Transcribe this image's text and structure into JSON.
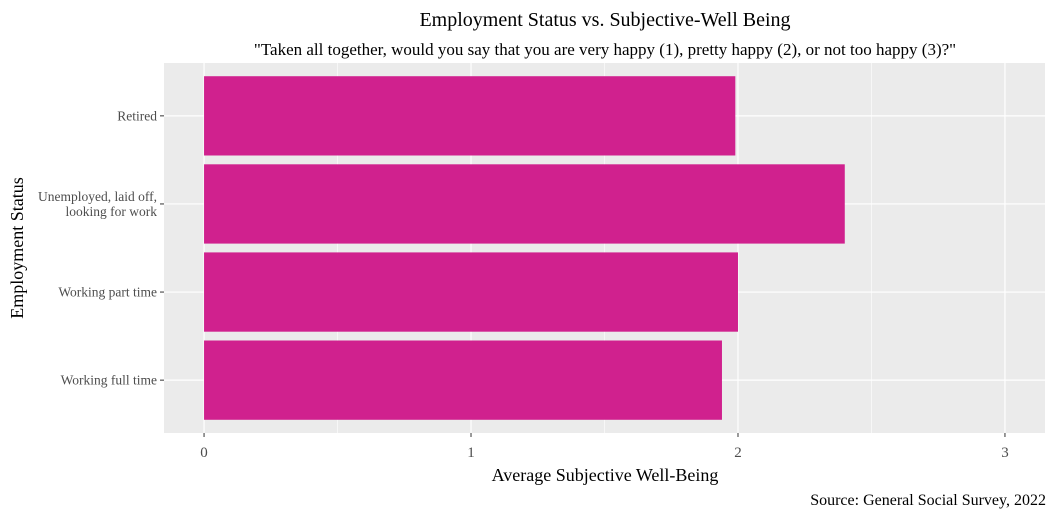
{
  "chart_data": {
    "type": "bar",
    "orientation": "horizontal",
    "title": "Employment Status vs. Subjective-Well Being",
    "subtitle": "\"Taken all together, would you say that you are very happy (1), pretty happy (2), or not too happy (3)?\"",
    "xlabel": "Average Subjective Well-Being",
    "ylabel": "Employment Status",
    "caption": "Source: General Social Survey, 2022",
    "categories": [
      "Retired",
      "Unemployed, laid off,\nlooking for work",
      "Working part time",
      "Working full time"
    ],
    "values": [
      1.99,
      2.4,
      2.0,
      1.94
    ],
    "xlim": [
      -0.15,
      3.15
    ],
    "xticks": [
      0,
      1,
      2,
      3
    ],
    "xticks_minor": [
      0.5,
      1.5,
      2.5
    ],
    "grid": true,
    "legend": "none",
    "colors": {
      "bar": "#D0218E",
      "panel": "#EBEBEB",
      "grid": "#FFFFFF",
      "text": "#000000",
      "tick_text": "#4D4D4D",
      "tick_mark": "#333333"
    }
  }
}
